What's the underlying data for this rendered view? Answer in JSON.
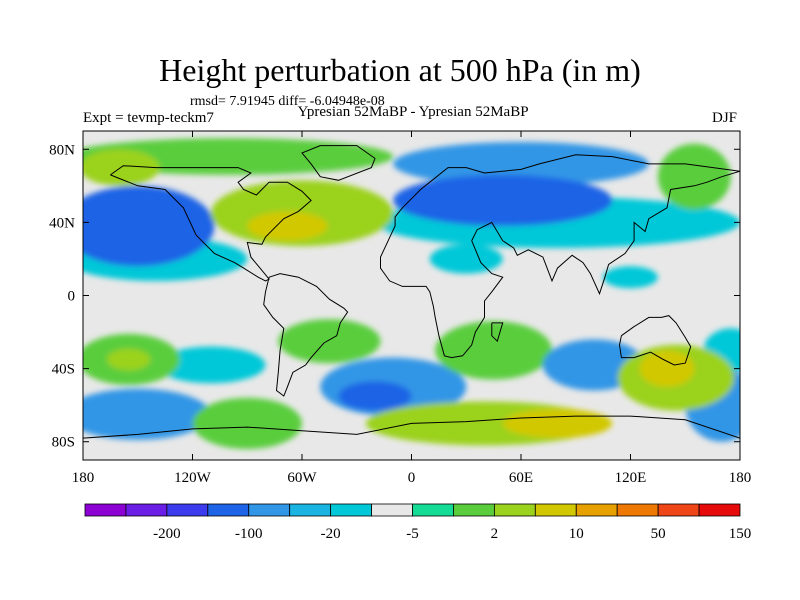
{
  "title": "Height perturbation at 500 hPa (in m)",
  "stats_line": "rmsd= 7.91945 diff= -6.04948e-08",
  "experiment_label": "Expt = tevmp-teckm7",
  "comparison_label": "Ypresian  52MaBP - Ypresian  52MaBP",
  "season": "DJF",
  "chart_data": {
    "type": "map",
    "projection": "cylindrical-equidistant",
    "variable": "500 hPa geopotential height perturbation",
    "units": "m",
    "lon_range": [
      -180,
      180
    ],
    "lat_range": [
      -90,
      90
    ],
    "x_tick_labels": [
      "180",
      "120W",
      "60W",
      "0",
      "60E",
      "120E",
      "180"
    ],
    "y_tick_labels": [
      "80N",
      "40N",
      "0",
      "40S",
      "80S"
    ],
    "colorbar": {
      "tick_labels": [
        "-200",
        "-100",
        "-20",
        "-5",
        "2",
        "10",
        "50",
        "150"
      ],
      "colors": [
        "#8c00d4",
        "#6a1ee6",
        "#3c3cee",
        "#1e64e6",
        "#3296e6",
        "#19b4e1",
        "#00c8d8",
        "#e8e8e8",
        "#14dc96",
        "#5acd3c",
        "#9bd21e",
        "#d2c800",
        "#e6a000",
        "#ee7800",
        "#ee4616",
        "#e60a0a"
      ]
    },
    "color_scale": {
      "-3": "#1e64e6",
      "-2": "#3296e6",
      "-1": "#00c8d8",
      "0": "#e8e8e8",
      "1": "#14dc96",
      "2": "#5acd3c",
      "3": "#9bd21e",
      "4": "#d2c800"
    },
    "features": [
      {
        "lon": -150,
        "lat": 38,
        "rlon": 42,
        "rlat": 22,
        "level": -3
      },
      {
        "lon": -140,
        "lat": 20,
        "rlon": 50,
        "rlat": 12,
        "level": -1
      },
      {
        "lon": -60,
        "lat": 45,
        "rlon": 50,
        "rlat": 18,
        "level": 3
      },
      {
        "lon": -68,
        "lat": 38,
        "rlon": 22,
        "rlat": 8,
        "level": 4
      },
      {
        "lon": -160,
        "lat": 70,
        "rlon": 22,
        "rlat": 10,
        "level": 3
      },
      {
        "lon": -100,
        "lat": 76,
        "rlon": 90,
        "rlat": 10,
        "level": 2
      },
      {
        "lon": 50,
        "lat": 52,
        "rlon": 60,
        "rlat": 14,
        "level": -3
      },
      {
        "lon": 80,
        "lat": 40,
        "rlon": 100,
        "rlat": 14,
        "level": -1
      },
      {
        "lon": 60,
        "lat": 72,
        "rlon": 70,
        "rlat": 12,
        "level": -2
      },
      {
        "lon": 155,
        "lat": 65,
        "rlon": 20,
        "rlat": 18,
        "level": 2
      },
      {
        "lon": 30,
        "lat": 20,
        "rlon": 20,
        "rlat": 8,
        "level": -1
      },
      {
        "lon": 120,
        "lat": 10,
        "rlon": 15,
        "rlat": 6,
        "level": -1
      },
      {
        "lon": -155,
        "lat": -35,
        "rlon": 28,
        "rlat": 14,
        "level": 2
      },
      {
        "lon": -155,
        "lat": -35,
        "rlon": 12,
        "rlat": 6,
        "level": 3
      },
      {
        "lon": -150,
        "lat": -65,
        "rlon": 40,
        "rlat": 14,
        "level": -2
      },
      {
        "lon": -110,
        "lat": -38,
        "rlon": 30,
        "rlat": 10,
        "level": -1
      },
      {
        "lon": -90,
        "lat": -70,
        "rlon": 30,
        "rlat": 14,
        "level": 2
      },
      {
        "lon": -45,
        "lat": -25,
        "rlon": 28,
        "rlat": 12,
        "level": 2
      },
      {
        "lon": -10,
        "lat": -50,
        "rlon": 40,
        "rlat": 16,
        "level": -2
      },
      {
        "lon": -20,
        "lat": -55,
        "rlon": 20,
        "rlat": 8,
        "level": -3
      },
      {
        "lon": 45,
        "lat": -30,
        "rlon": 32,
        "rlat": 16,
        "level": 2
      },
      {
        "lon": 40,
        "lat": -70,
        "rlon": 65,
        "rlat": 12,
        "level": 3
      },
      {
        "lon": 80,
        "lat": -70,
        "rlon": 30,
        "rlat": 8,
        "level": 4
      },
      {
        "lon": 100,
        "lat": -38,
        "rlon": 28,
        "rlat": 14,
        "level": -2
      },
      {
        "lon": 145,
        "lat": -45,
        "rlon": 32,
        "rlat": 18,
        "level": 3
      },
      {
        "lon": 140,
        "lat": -40,
        "rlon": 15,
        "rlat": 10,
        "level": 4
      },
      {
        "lon": 170,
        "lat": -60,
        "rlon": 20,
        "rlat": 20,
        "level": -2
      },
      {
        "lon": 175,
        "lat": -30,
        "rlon": 15,
        "rlat": 12,
        "level": -1
      }
    ]
  },
  "coastlines": [
    {
      "name": "north-america",
      "points": [
        [
          -165,
          66
        ],
        [
          -150,
          60
        ],
        [
          -135,
          58
        ],
        [
          -125,
          48
        ],
        [
          -118,
          33
        ],
        [
          -108,
          23
        ],
        [
          -97,
          18
        ],
        [
          -92,
          15
        ],
        [
          -84,
          10
        ],
        [
          -80,
          8
        ],
        [
          -78,
          9
        ],
        [
          -83,
          15
        ],
        [
          -88,
          21
        ],
        [
          -90,
          29
        ],
        [
          -82,
          28
        ],
        [
          -80,
          32
        ],
        [
          -76,
          36
        ],
        [
          -70,
          42
        ],
        [
          -62,
          46
        ],
        [
          -55,
          52
        ],
        [
          -60,
          57
        ],
        [
          -68,
          62
        ],
        [
          -78,
          62
        ],
        [
          -85,
          55
        ],
        [
          -92,
          58
        ],
        [
          -95,
          62
        ],
        [
          -88,
          67
        ],
        [
          -95,
          70
        ],
        [
          -110,
          70
        ],
        [
          -125,
          70
        ],
        [
          -140,
          70
        ],
        [
          -158,
          71
        ],
        [
          -165,
          66
        ]
      ]
    },
    {
      "name": "greenland",
      "points": [
        [
          -50,
          82
        ],
        [
          -30,
          82
        ],
        [
          -20,
          75
        ],
        [
          -22,
          70
        ],
        [
          -40,
          63
        ],
        [
          -50,
          65
        ],
        [
          -55,
          72
        ],
        [
          -60,
          78
        ],
        [
          -50,
          82
        ]
      ]
    },
    {
      "name": "south-america",
      "points": [
        [
          -78,
          10
        ],
        [
          -72,
          12
        ],
        [
          -62,
          10
        ],
        [
          -52,
          5
        ],
        [
          -45,
          -2
        ],
        [
          -37,
          -7
        ],
        [
          -35,
          -9
        ],
        [
          -39,
          -15
        ],
        [
          -41,
          -22
        ],
        [
          -48,
          -26
        ],
        [
          -55,
          -34
        ],
        [
          -58,
          -38
        ],
        [
          -65,
          -42
        ],
        [
          -68,
          -50
        ],
        [
          -70,
          -55
        ],
        [
          -74,
          -52
        ],
        [
          -73,
          -42
        ],
        [
          -72,
          -30
        ],
        [
          -70,
          -18
        ],
        [
          -76,
          -12
        ],
        [
          -81,
          -5
        ],
        [
          -80,
          2
        ],
        [
          -78,
          10
        ]
      ]
    },
    {
      "name": "africa-europe-asia",
      "points": [
        [
          -10,
          36
        ],
        [
          -17,
          21
        ],
        [
          -17,
          15
        ],
        [
          -12,
          8
        ],
        [
          -5,
          5
        ],
        [
          8,
          5
        ],
        [
          10,
          2
        ],
        [
          12,
          -6
        ],
        [
          13,
          -12
        ],
        [
          15,
          -22
        ],
        [
          18,
          -33
        ],
        [
          22,
          -34
        ],
        [
          28,
          -33
        ],
        [
          33,
          -27
        ],
        [
          35,
          -20
        ],
        [
          40,
          -12
        ],
        [
          40,
          -3
        ],
        [
          44,
          2
        ],
        [
          50,
          10
        ],
        [
          44,
          12
        ],
        [
          38,
          18
        ],
        [
          33,
          30
        ],
        [
          36,
          36
        ],
        [
          44,
          40
        ],
        [
          50,
          30
        ],
        [
          56,
          26
        ],
        [
          58,
          22
        ],
        [
          64,
          25
        ],
        [
          72,
          21
        ],
        [
          77,
          8
        ],
        [
          80,
          15
        ],
        [
          88,
          22
        ],
        [
          94,
          18
        ],
        [
          98,
          12
        ],
        [
          103,
          1
        ],
        [
          106,
          10
        ],
        [
          108,
          17
        ],
        [
          117,
          23
        ],
        [
          122,
          30
        ],
        [
          122,
          40
        ],
        [
          128,
          35
        ],
        [
          130,
          42
        ],
        [
          140,
          48
        ],
        [
          142,
          58
        ],
        [
          155,
          60
        ],
        [
          162,
          62
        ],
        [
          170,
          65
        ],
        [
          180,
          68
        ],
        [
          150,
          72
        ],
        [
          130,
          72
        ],
        [
          110,
          76
        ],
        [
          90,
          77
        ],
        [
          70,
          72
        ],
        [
          60,
          69
        ],
        [
          40,
          67
        ],
        [
          30,
          70
        ],
        [
          20,
          70
        ],
        [
          10,
          62
        ],
        [
          5,
          58
        ],
        [
          -5,
          48
        ],
        [
          -9,
          43
        ],
        [
          -9,
          38
        ],
        [
          -10,
          36
        ]
      ]
    },
    {
      "name": "madagascar",
      "points": [
        [
          44,
          -15
        ],
        [
          50,
          -15
        ],
        [
          47,
          -25
        ],
        [
          44,
          -22
        ],
        [
          44,
          -15
        ]
      ]
    },
    {
      "name": "australia",
      "points": [
        [
          115,
          -22
        ],
        [
          122,
          -17
        ],
        [
          130,
          -12
        ],
        [
          137,
          -12
        ],
        [
          141,
          -11
        ],
        [
          145,
          -15
        ],
        [
          150,
          -23
        ],
        [
          153,
          -28
        ],
        [
          150,
          -37
        ],
        [
          144,
          -38
        ],
        [
          138,
          -35
        ],
        [
          131,
          -31
        ],
        [
          122,
          -34
        ],
        [
          115,
          -34
        ],
        [
          114,
          -27
        ],
        [
          115,
          -22
        ]
      ]
    },
    {
      "name": "antarctica-shelf",
      "points": [
        [
          -180,
          -78
        ],
        [
          -150,
          -76
        ],
        [
          -120,
          -73
        ],
        [
          -90,
          -72
        ],
        [
          -60,
          -74
        ],
        [
          -30,
          -76
        ],
        [
          0,
          -70
        ],
        [
          30,
          -69
        ],
        [
          60,
          -67
        ],
        [
          90,
          -66
        ],
        [
          120,
          -66
        ],
        [
          150,
          -68
        ],
        [
          180,
          -78
        ]
      ]
    }
  ]
}
